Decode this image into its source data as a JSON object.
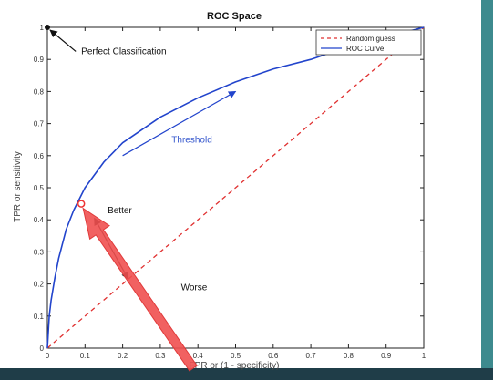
{
  "chart_data": {
    "type": "line",
    "title": "ROC Space",
    "xlabel": "FPR or (1 - specificity)",
    "ylabel": "TPR or sensitivity",
    "xlim": [
      0,
      1
    ],
    "ylim": [
      0,
      1
    ],
    "x_ticks": [
      "0",
      "0.1",
      "0.2",
      "0.3",
      "0.4",
      "0.5",
      "0.6",
      "0.7",
      "0.8",
      "0.9",
      "1"
    ],
    "y_ticks": [
      "0",
      "0.1",
      "0.2",
      "0.3",
      "0.4",
      "0.5",
      "0.6",
      "0.7",
      "0.8",
      "0.9",
      "1"
    ],
    "grid": false,
    "legend_position": "top-right",
    "series": [
      {
        "name": "Random guess",
        "color": "#e03030",
        "style": "dashed",
        "x": [
          0,
          1
        ],
        "y": [
          0,
          1
        ]
      },
      {
        "name": "ROC Curve",
        "color": "#2244cc",
        "style": "solid",
        "x": [
          0,
          0.005,
          0.01,
          0.02,
          0.03,
          0.05,
          0.07,
          0.1,
          0.15,
          0.2,
          0.3,
          0.4,
          0.5,
          0.6,
          0.7,
          0.8,
          0.9,
          1.0
        ],
        "y": [
          0,
          0.1,
          0.15,
          0.22,
          0.28,
          0.37,
          0.43,
          0.5,
          0.58,
          0.64,
          0.72,
          0.78,
          0.83,
          0.87,
          0.9,
          0.94,
          0.97,
          1.0
        ]
      }
    ],
    "annotations": [
      {
        "text": "Perfect Classification",
        "point": [
          0,
          1
        ],
        "label_at": [
          0.09,
          0.925
        ]
      },
      {
        "text": "Better",
        "label_at": [
          0.16,
          0.42
        ]
      },
      {
        "text": "Worse",
        "label_at": [
          0.355,
          0.18
        ]
      },
      {
        "text": "Threshold",
        "label_at": [
          0.33,
          0.64
        ],
        "arrow_from": [
          0.2,
          0.6
        ],
        "arrow_to": [
          0.5,
          0.8
        ]
      }
    ],
    "highlight_point": [
      0.09,
      0.45
    ]
  }
}
